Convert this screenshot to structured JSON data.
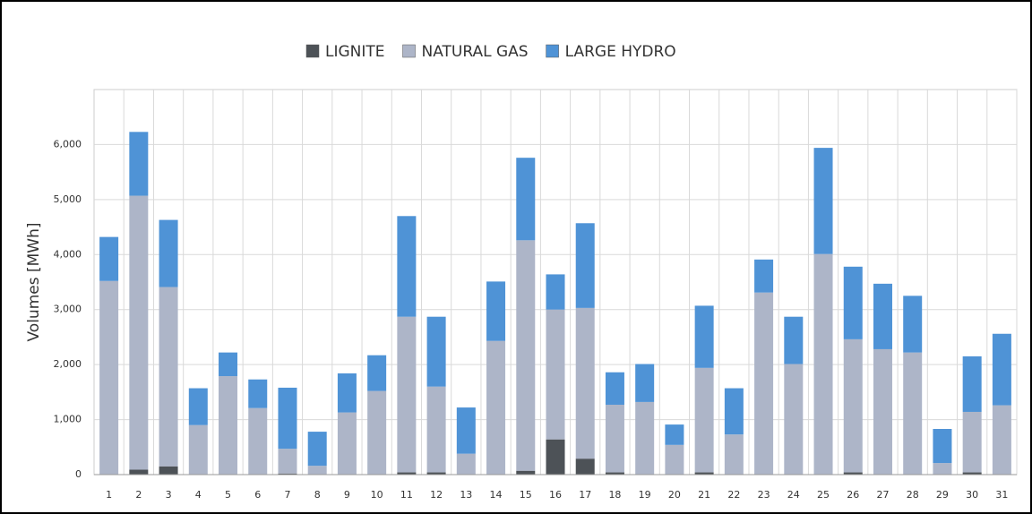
{
  "chart_data": {
    "type": "stacked-bar",
    "y_label": "Volumes [MWh]",
    "categories": [
      "1",
      "2",
      "3",
      "4",
      "5",
      "6",
      "7",
      "8",
      "9",
      "10",
      "11",
      "12",
      "13",
      "14",
      "15",
      "16",
      "17",
      "18",
      "19",
      "20",
      "21",
      "22",
      "23",
      "24",
      "25",
      "26",
      "27",
      "28",
      "29",
      "30",
      "31"
    ],
    "series": [
      {
        "name": "LIGNITE",
        "color": "#4d5257",
        "values": [
          0,
          90,
          150,
          0,
          0,
          0,
          20,
          0,
          0,
          0,
          40,
          40,
          0,
          0,
          70,
          640,
          290,
          40,
          0,
          0,
          40,
          0,
          0,
          0,
          0,
          40,
          0,
          0,
          0,
          40,
          0
        ]
      },
      {
        "name": "NATURAL GAS",
        "color": "#adb5c8",
        "values": [
          3520,
          4980,
          3260,
          900,
          1790,
          1210,
          450,
          160,
          1130,
          1520,
          2830,
          1560,
          380,
          2430,
          4190,
          2360,
          2740,
          1230,
          1320,
          540,
          1900,
          730,
          3310,
          2010,
          4010,
          2420,
          2280,
          2220,
          210,
          1100,
          1260
        ]
      },
      {
        "name": "LARGE HYDRO",
        "color": "#4f93d6",
        "values": [
          800,
          1160,
          1220,
          670,
          430,
          520,
          1110,
          620,
          710,
          650,
          1830,
          1270,
          840,
          1080,
          1500,
          640,
          1540,
          590,
          690,
          370,
          1130,
          840,
          600,
          860,
          1930,
          1320,
          1190,
          1030,
          620,
          1010,
          1300
        ]
      }
    ],
    "ylim": [
      0,
      7000
    ],
    "yticks": [
      0,
      {
        "value": 1000,
        "label": "1,000"
      },
      {
        "value": 2000,
        "label": "2,000"
      },
      {
        "value": 3000,
        "label": "3,000"
      },
      {
        "value": 4000,
        "label": "4,000"
      },
      {
        "value": 5000,
        "label": "5,000"
      },
      {
        "value": 6000,
        "label": "6,000"
      }
    ],
    "grid": true
  }
}
